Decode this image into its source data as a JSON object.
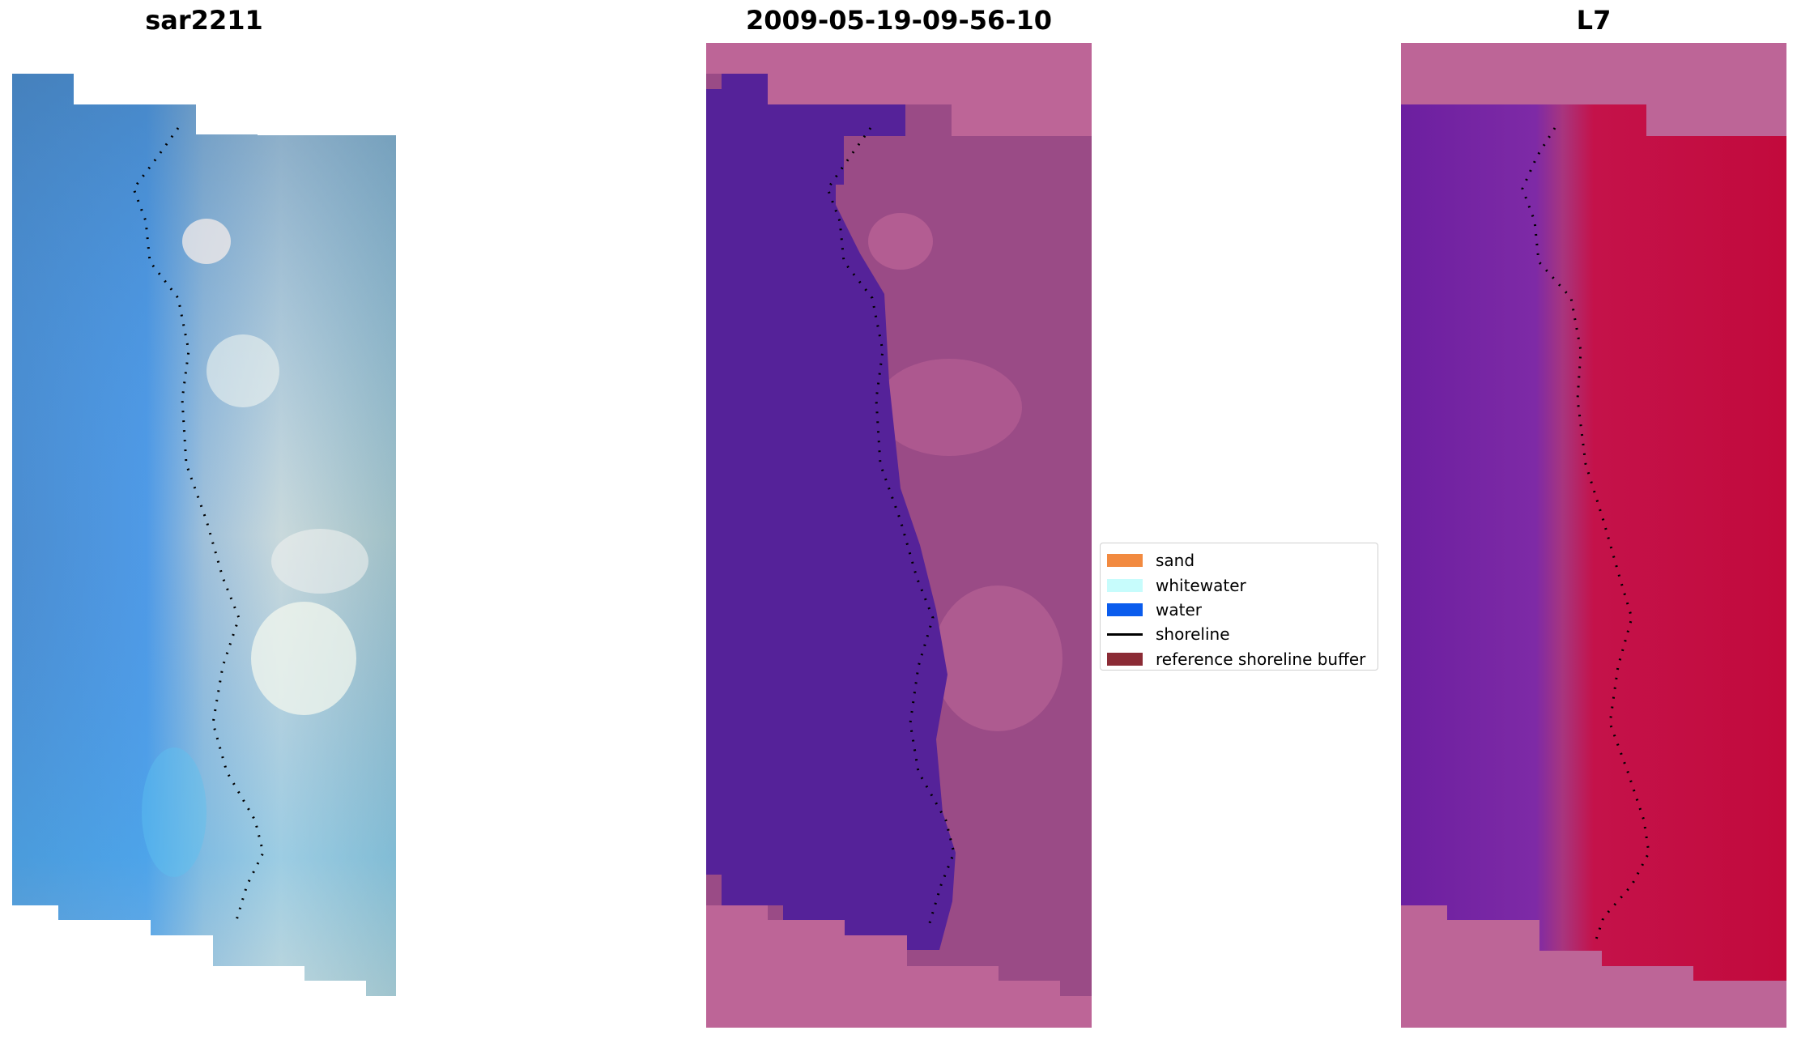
{
  "panels": [
    {
      "title": "sar2211"
    },
    {
      "title": "2009-05-19-09-56-10"
    },
    {
      "title": "L7"
    }
  ],
  "legend": {
    "items": [
      {
        "label": "sand",
        "color": "#f28a40",
        "kind": "patch"
      },
      {
        "label": "whitewater",
        "color": "#c7fcfc",
        "kind": "patch"
      },
      {
        "label": "water",
        "color": "#0a5ced",
        "kind": "patch"
      },
      {
        "label": "shoreline",
        "color": "#000000",
        "kind": "line"
      },
      {
        "label": "reference shoreline buffer",
        "color": "#8b2b35",
        "kind": "patch"
      }
    ]
  },
  "colors": {
    "rgb_water": "#4a8fd8",
    "rgb_beach": "#b9ccd6",
    "class_water": "#552299",
    "class_sand": "#9a4b86",
    "class_pink": "#bd6597",
    "mndwi_water": "#7a2aa0",
    "mndwi_land": "#c20a3c"
  }
}
